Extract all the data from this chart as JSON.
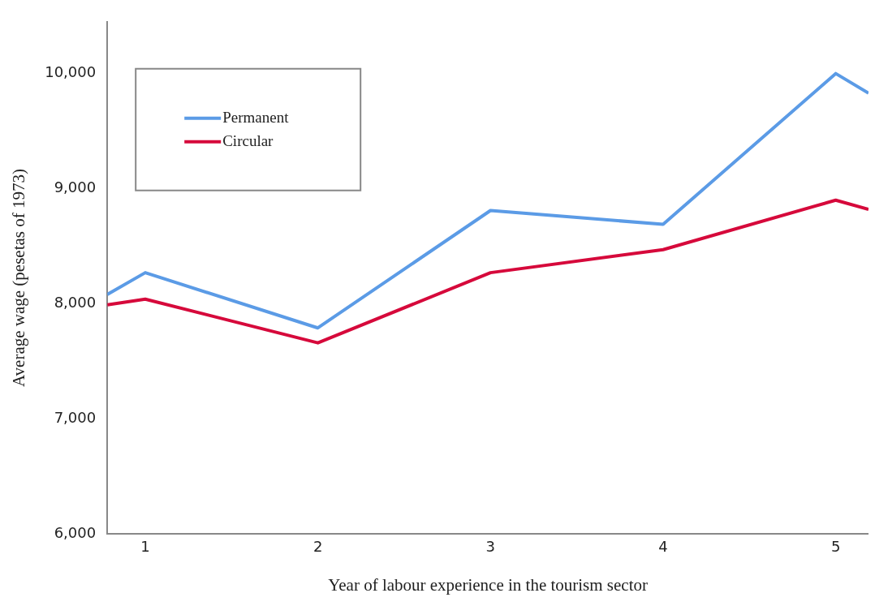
{
  "chart_data": {
    "type": "line",
    "xlabel": "Year of labour experience in the tourism sector",
    "ylabel": "Average wage (pesetas of 1973)",
    "x": [
      0.78,
      1,
      2,
      3,
      4,
      5,
      5.19
    ],
    "series": [
      {
        "name": "Permanent",
        "color": "#5b9be6",
        "values": [
          8080,
          8270,
          7790,
          8810,
          8690,
          10000,
          9830
        ]
      },
      {
        "name": "Circular",
        "color": "#d6093b",
        "values": [
          7990,
          8040,
          7660,
          8270,
          8470,
          8900,
          8820
        ]
      }
    ],
    "xlim": [
      0.78,
      5.19
    ],
    "xticks": [
      1,
      2,
      3,
      4,
      5
    ],
    "ylim": [
      6000,
      10450
    ],
    "yticks": [
      {
        "value": 6000,
        "label": "6,000"
      },
      {
        "value": 7000,
        "label": "7,000"
      },
      {
        "value": 8000,
        "label": "8,000"
      },
      {
        "value": 9000,
        "label": "9,000"
      },
      {
        "value": 10000,
        "label": "10,000"
      }
    ],
    "grid": false,
    "legend": "top left",
    "marker": "none",
    "line_style": "solid"
  }
}
